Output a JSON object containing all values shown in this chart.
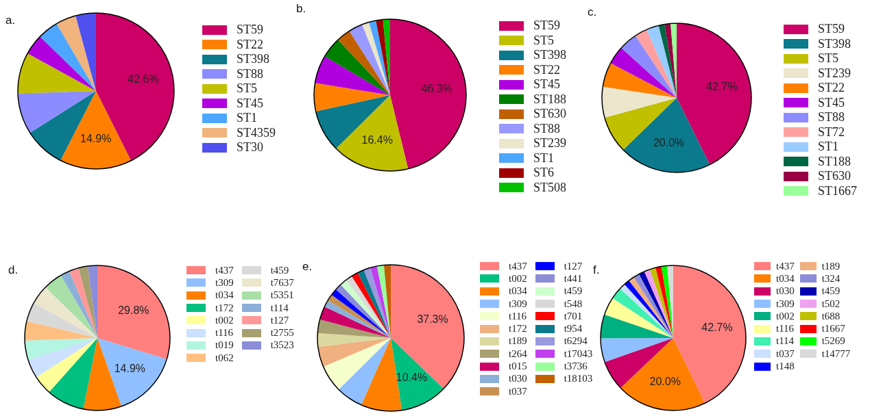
{
  "chart_data": [
    {
      "type": "pie",
      "title": "a.",
      "legend": "right",
      "categories": [
        "ST59",
        "ST22",
        "ST398",
        "ST88",
        "ST5",
        "ST45",
        "ST1",
        "ST4359",
        "ST30"
      ],
      "values": [
        42.6,
        14.9,
        8.5,
        8.5,
        8.5,
        4.3,
        4.3,
        4.2,
        4.2
      ],
      "value_labels": [
        "42.6%",
        "14.9%",
        null,
        null,
        null,
        null,
        null,
        null,
        null
      ],
      "colors": [
        "#cc0066",
        "#ff8000",
        "#0a7a8c",
        "#8c8cff",
        "#c0c000",
        "#b000e0",
        "#4da6ff",
        "#f0b47c",
        "#5050f0"
      ]
    },
    {
      "type": "pie",
      "title": "b.",
      "legend": "right",
      "categories": [
        "ST59",
        "ST5",
        "ST398",
        "ST22",
        "ST45",
        "ST188",
        "ST630",
        "ST88",
        "ST239",
        "ST1",
        "ST6",
        "ST508"
      ],
      "values": [
        46.3,
        16.4,
        9.0,
        6.0,
        6.0,
        4.5,
        3.0,
        3.0,
        1.5,
        1.5,
        1.5,
        1.5
      ],
      "value_labels": [
        "46.3%",
        "16.4%",
        null,
        null,
        null,
        null,
        null,
        null,
        null,
        null,
        null,
        null
      ],
      "colors": [
        "#cc0066",
        "#c0c000",
        "#0a7a8c",
        "#ff8000",
        "#b000e0",
        "#008000",
        "#c06000",
        "#9999ff",
        "#ebe6cc",
        "#4da6ff",
        "#a00000",
        "#00c000"
      ]
    },
    {
      "type": "pie",
      "title": "c.",
      "legend": "right",
      "categories": [
        "ST59",
        "ST398",
        "ST5",
        "ST239",
        "ST22",
        "ST45",
        "ST88",
        "ST72",
        "ST1",
        "ST188",
        "ST630",
        "ST1667"
      ],
      "values": [
        42.7,
        20.0,
        8.0,
        6.7,
        5.3,
        4.0,
        4.0,
        2.7,
        2.7,
        1.3,
        1.3,
        1.3
      ],
      "value_labels": [
        "42.7%",
        "20.0%",
        null,
        null,
        null,
        null,
        null,
        null,
        null,
        null,
        null,
        null
      ],
      "colors": [
        "#cc0066",
        "#0a7a8c",
        "#c0c000",
        "#ebe6cc",
        "#ff8000",
        "#b000e0",
        "#8c8cff",
        "#ffa0a0",
        "#99ccff",
        "#006644",
        "#990044",
        "#99ff99"
      ]
    },
    {
      "type": "pie",
      "title": "d.",
      "legend": "right",
      "categories": [
        "t437",
        "t309",
        "t034",
        "t172",
        "t002",
        "t116",
        "t019",
        "t062",
        "t459",
        "t7637",
        "t5351",
        "t114",
        "t127",
        "t2755",
        "t3523"
      ],
      "values": [
        29.8,
        14.9,
        8.5,
        8.5,
        4.3,
        4.3,
        4.3,
        4.3,
        4.3,
        4.3,
        4.3,
        2.1,
        2.1,
        2.1,
        2.1
      ],
      "value_labels": [
        "29.8%",
        "14.9%",
        null,
        null,
        null,
        null,
        null,
        null,
        null,
        null,
        null,
        null,
        null,
        null,
        null
      ],
      "colors": [
        "#ff7f7f",
        "#8fbfff",
        "#ff8000",
        "#00c080",
        "#ffff99",
        "#cce0ff",
        "#b3f5e0",
        "#ffbf80",
        "#d9d9d9",
        "#ebe6cc",
        "#a8e0a8",
        "#8cafd9",
        "#ff9999",
        "#a89f70",
        "#8c8cd9"
      ]
    },
    {
      "type": "pie",
      "title": "e.",
      "legend": "right",
      "categories": [
        "t437",
        "t002",
        "t034",
        "t309",
        "t116",
        "t172",
        "t189",
        "t264",
        "t015",
        "t030",
        "t037",
        "t127",
        "t441",
        "t459",
        "t548",
        "t701",
        "t954",
        "t6294",
        "t17043",
        "t3736",
        "t18103"
      ],
      "values": [
        37.3,
        10.4,
        9.0,
        6.0,
        6.0,
        4.5,
        3.0,
        3.0,
        3.0,
        1.5,
        1.5,
        1.5,
        1.5,
        1.5,
        1.5,
        1.5,
        1.5,
        1.5,
        1.5,
        1.5,
        1.5
      ],
      "value_labels": [
        "37.3%",
        "10.4%",
        null,
        null,
        null,
        null,
        null,
        null,
        null,
        null,
        null,
        null,
        null,
        null,
        null,
        null,
        null,
        null,
        null,
        null,
        null
      ],
      "colors": [
        "#ff7f7f",
        "#00c080",
        "#ff8000",
        "#8fbfff",
        "#f5ffcc",
        "#f0b080",
        "#d9d9a0",
        "#a8a070",
        "#cc0066",
        "#8cafd9",
        "#c89050",
        "#0000ff",
        "#8c8cd9",
        "#ccffcc",
        "#d9d9d9",
        "#ff0000",
        "#0a7a8c",
        "#9a9ae0",
        "#c040f0",
        "#99ff99",
        "#c06000"
      ]
    },
    {
      "type": "pie",
      "title": "f.",
      "legend": "right",
      "categories": [
        "t437",
        "t034",
        "t030",
        "t309",
        "t002",
        "t116",
        "t114",
        "t037",
        "t148",
        "t189",
        "t324",
        "t459",
        "t502",
        "t688",
        "t1667",
        "t5269",
        "t14777"
      ],
      "values": [
        42.7,
        20.0,
        6.7,
        5.3,
        5.3,
        4.0,
        2.7,
        1.3,
        1.3,
        1.3,
        1.3,
        1.3,
        1.3,
        1.3,
        1.3,
        1.3,
        1.3
      ],
      "value_labels": [
        "42.7%",
        "20.0%",
        null,
        null,
        null,
        null,
        null,
        null,
        null,
        null,
        null,
        null,
        null,
        null,
        null,
        null,
        null
      ],
      "colors": [
        "#ff7f7f",
        "#ff8000",
        "#cc0066",
        "#8fbfff",
        "#00b080",
        "#ffff99",
        "#40f0b0",
        "#cce0ff",
        "#0000ff",
        "#f0b080",
        "#8c8cd9",
        "#0000b0",
        "#f0a0f0",
        "#c0c000",
        "#ff0000",
        "#00ff00",
        "#d9d9d9"
      ]
    }
  ]
}
